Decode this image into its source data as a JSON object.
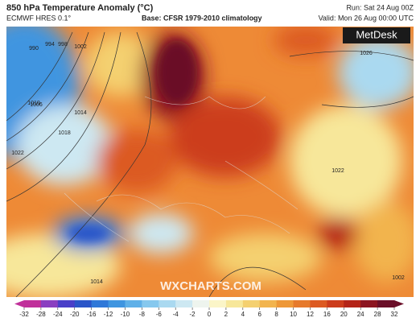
{
  "header": {
    "title": "850 hPa Temperature Anomaly (°C)",
    "model": "ECMWF HRES 0.1°",
    "base": "Base: CFSR 1979-2010 climatology",
    "run": "Run: Sat 24 Aug 00Z",
    "valid": "Valid: Mon 26 Aug 00:00 UTC"
  },
  "map": {
    "logo": "MetDesk",
    "watermark": "WXCHARTS.COM",
    "isobar_labels": [
      "1026",
      "1022",
      "1018",
      "1014",
      "1010",
      "1006",
      "1002",
      "998",
      "994",
      "990",
      "1022",
      "1014",
      "1002"
    ]
  },
  "colorbar": {
    "ticks": [
      -32,
      -28,
      -24,
      -20,
      -16,
      -12,
      -10,
      -8,
      -6,
      -4,
      -2,
      0,
      2,
      4,
      6,
      8,
      10,
      12,
      16,
      20,
      24,
      28,
      32
    ],
    "colors": [
      "#c0309a",
      "#8a3fc0",
      "#4a3fc8",
      "#2a55c8",
      "#2f78d8",
      "#3f95e0",
      "#5fb0e8",
      "#86c8ee",
      "#aad9f0",
      "#cde8f2",
      "#eef4ee",
      "#fbf5c8",
      "#f7e79a",
      "#f4d070",
      "#f2b44e",
      "#ee9838",
      "#e67a2c",
      "#dc5a22",
      "#cc3c1c",
      "#b42418",
      "#8c1420",
      "#6a0e28"
    ]
  }
}
